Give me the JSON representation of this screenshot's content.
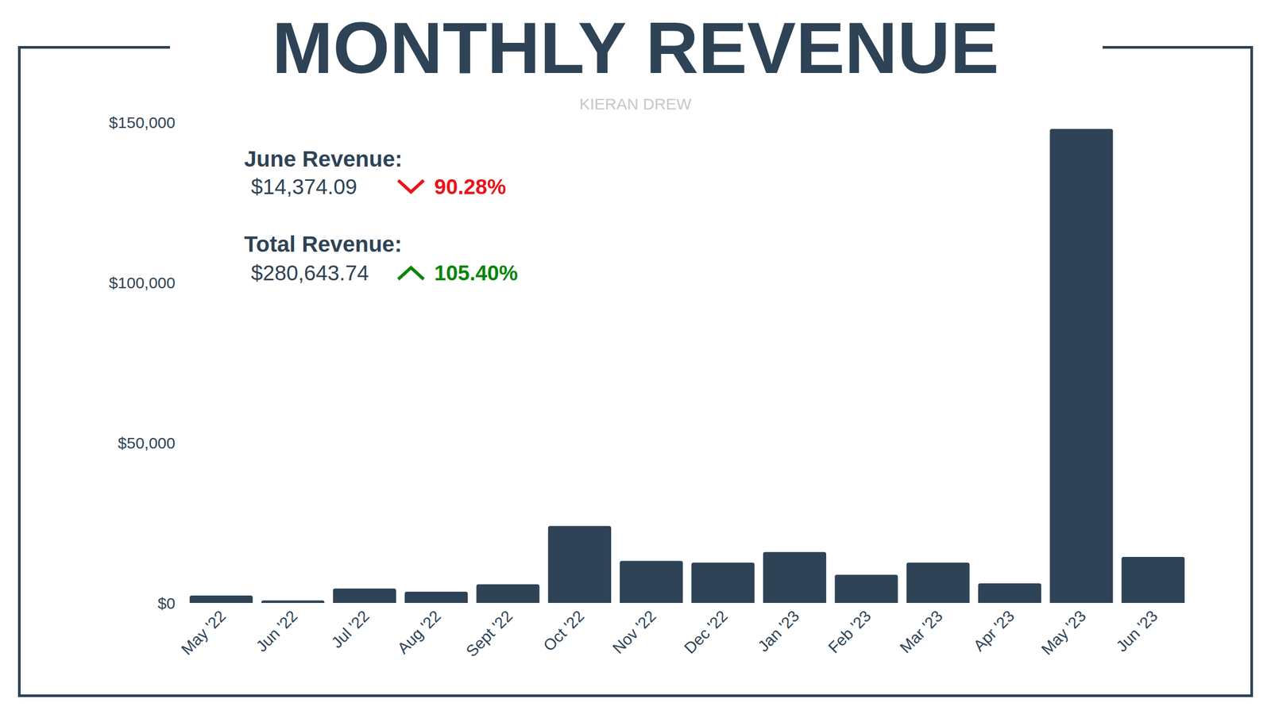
{
  "chart_data": {
    "type": "bar",
    "title": "MONTHLY REVENUE",
    "subtitle": "KIERAN DREW",
    "categories": [
      "May '22",
      "Jun '22",
      "Jul '22",
      "Aug '22",
      "Sept '22",
      "Oct '22",
      "Nov '22",
      "Dec '22",
      "Jan '23",
      "Feb '23",
      "Mar '23",
      "Apr '23",
      "May '23",
      "Jun '23"
    ],
    "values": [
      2300,
      800,
      4500,
      3500,
      5800,
      24000,
      13100,
      12600,
      15900,
      8800,
      12600,
      6100,
      147881,
      14374.09
    ],
    "color": "#2e4356",
    "ylim": [
      0,
      150000
    ],
    "yticks": [
      {
        "value": 0,
        "label": "$0"
      },
      {
        "value": 50000,
        "label": "$50,000"
      },
      {
        "value": 100000,
        "label": "$100,000"
      },
      {
        "value": 150000,
        "label": "$150,000"
      }
    ],
    "grid": false,
    "annotations": [
      {
        "label": "June Revenue:",
        "value": "$14,374.09",
        "change": "90.28%",
        "direction": "down"
      },
      {
        "label": "Total Revenue:",
        "value": "$280,643.74",
        "change": "105.40%",
        "direction": "up"
      }
    ]
  }
}
